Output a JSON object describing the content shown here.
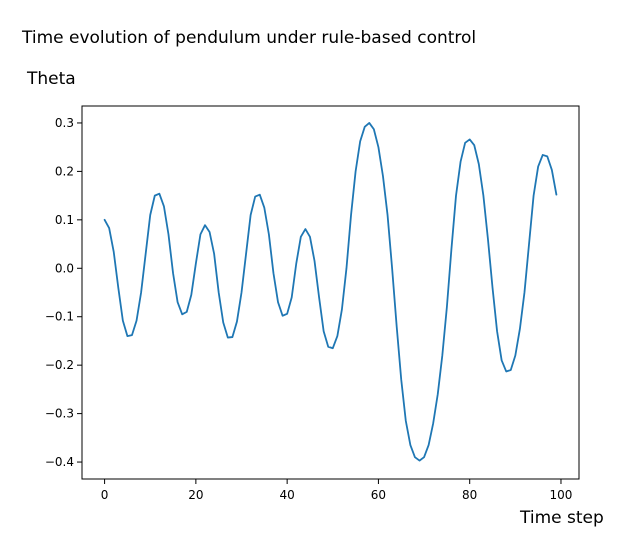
{
  "chart_data": {
    "type": "line",
    "title": "Time evolution of pendulum under rule-based control",
    "ylabel": "Theta",
    "xlabel": "Time step",
    "xlim": [
      -4.95,
      103.95
    ],
    "ylim": [
      -0.435,
      0.335
    ],
    "xticks": [
      0,
      20,
      40,
      60,
      80,
      100
    ],
    "xtick_labels": [
      "0",
      "20",
      "40",
      "60",
      "80",
      "100"
    ],
    "yticks": [
      0.3,
      0.2,
      0.1,
      0.0,
      -0.1,
      -0.2,
      -0.3,
      -0.4
    ],
    "ytick_labels": [
      "0.3",
      "0.2",
      "0.1",
      "0.0",
      "−0.1",
      "−0.2",
      "−0.3",
      "−0.4"
    ],
    "grid": false,
    "series": [
      {
        "color": "#1f77b4",
        "x": [
          0,
          1,
          2,
          3,
          4,
          5,
          6,
          7,
          8,
          9,
          10,
          11,
          12,
          13,
          14,
          15,
          16,
          17,
          18,
          19,
          20,
          21,
          22,
          23,
          24,
          25,
          26,
          27,
          28,
          29,
          30,
          31,
          32,
          33,
          34,
          35,
          36,
          37,
          38,
          39,
          40,
          41,
          42,
          43,
          44,
          45,
          46,
          47,
          48,
          49,
          50,
          51,
          52,
          53,
          54,
          55,
          56,
          57,
          58,
          59,
          60,
          61,
          62,
          63,
          64,
          65,
          66,
          67,
          68,
          69,
          70,
          71,
          72,
          73,
          74,
          75,
          76,
          77,
          78,
          79,
          80,
          81,
          82,
          83,
          84,
          85,
          86,
          87,
          88,
          89,
          90,
          91,
          92,
          93,
          94,
          95,
          96,
          97,
          98,
          99
        ],
        "y": [
          0.1,
          0.083,
          0.034,
          -0.04,
          -0.108,
          -0.14,
          -0.138,
          -0.108,
          -0.05,
          0.03,
          0.11,
          0.15,
          0.154,
          0.128,
          0.07,
          -0.01,
          -0.07,
          -0.095,
          -0.09,
          -0.055,
          0.01,
          0.07,
          0.089,
          0.075,
          0.03,
          -0.05,
          -0.112,
          -0.143,
          -0.142,
          -0.11,
          -0.05,
          0.03,
          0.11,
          0.148,
          0.152,
          0.125,
          0.07,
          -0.01,
          -0.07,
          -0.098,
          -0.094,
          -0.06,
          0.01,
          0.065,
          0.081,
          0.065,
          0.015,
          -0.06,
          -0.13,
          -0.162,
          -0.165,
          -0.14,
          -0.085,
          0.0,
          0.11,
          0.2,
          0.262,
          0.292,
          0.3,
          0.287,
          0.25,
          0.19,
          0.11,
          0.0,
          -0.12,
          -0.23,
          -0.315,
          -0.365,
          -0.39,
          -0.397,
          -0.39,
          -0.365,
          -0.32,
          -0.26,
          -0.18,
          -0.08,
          0.04,
          0.15,
          0.22,
          0.259,
          0.266,
          0.254,
          0.215,
          0.15,
          0.06,
          -0.04,
          -0.13,
          -0.19,
          -0.213,
          -0.21,
          -0.18,
          -0.125,
          -0.05,
          0.05,
          0.15,
          0.21,
          0.234,
          0.231,
          0.203,
          0.152
        ]
      }
    ]
  }
}
